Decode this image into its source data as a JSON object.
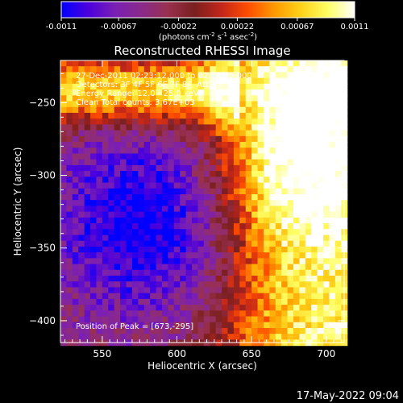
{
  "colorbar": {
    "min": -0.0011,
    "max": 0.0011,
    "tick_values": [
      -0.0011,
      -0.00067,
      -0.00022,
      0.00022,
      0.00067,
      0.0011
    ],
    "tick_labels": [
      "-0.0011",
      "-0.00067",
      "-0.00022",
      "0.00022",
      "0.00067",
      "0.0011"
    ],
    "unit_prefix": "(photons cm",
    "unit_sup1": "-2",
    "unit_mid1": " s",
    "unit_sup2": "-1",
    "unit_mid2": " asec",
    "unit_sup3": "-2",
    "unit_suffix": ")",
    "colors": [
      "#0000ff",
      "#4b00dc",
      "#7a1fb5",
      "#8a2a8a",
      "#99304f",
      "#7a1f1f",
      "#c2261a",
      "#ff4d00",
      "#ff9a00",
      "#ffd21a",
      "#ffff66",
      "#ffffff"
    ]
  },
  "chart_data": {
    "type": "heatmap",
    "title": "Reconstructed RHESSI Image",
    "xlabel": "Heliocentric X (arcsec)",
    "ylabel": "Heliocentric Y (arcsec)",
    "xlim": [
      522,
      712
    ],
    "ylim": [
      -415,
      -221
    ],
    "xticks": [
      550,
      600,
      650,
      700
    ],
    "yticks": [
      -250,
      -300,
      -350,
      -400
    ],
    "annotations": [
      "27-Dec-2011 02:23:12.000 to 02:24:36.000",
      "Detectors: 3F 4F 5F 6F 7F 8F, Att 0",
      "Energy Range: 12.0 - 25.0 keV",
      "Clean      Total counts: 3.67E+03"
    ],
    "peak_label": "Position of Peak = [673,-295]",
    "peak": [
      673,
      -295
    ],
    "grid": false,
    "pixel_scale_arcsec": 4
  },
  "timestamp": "17-May-2022 09:04"
}
